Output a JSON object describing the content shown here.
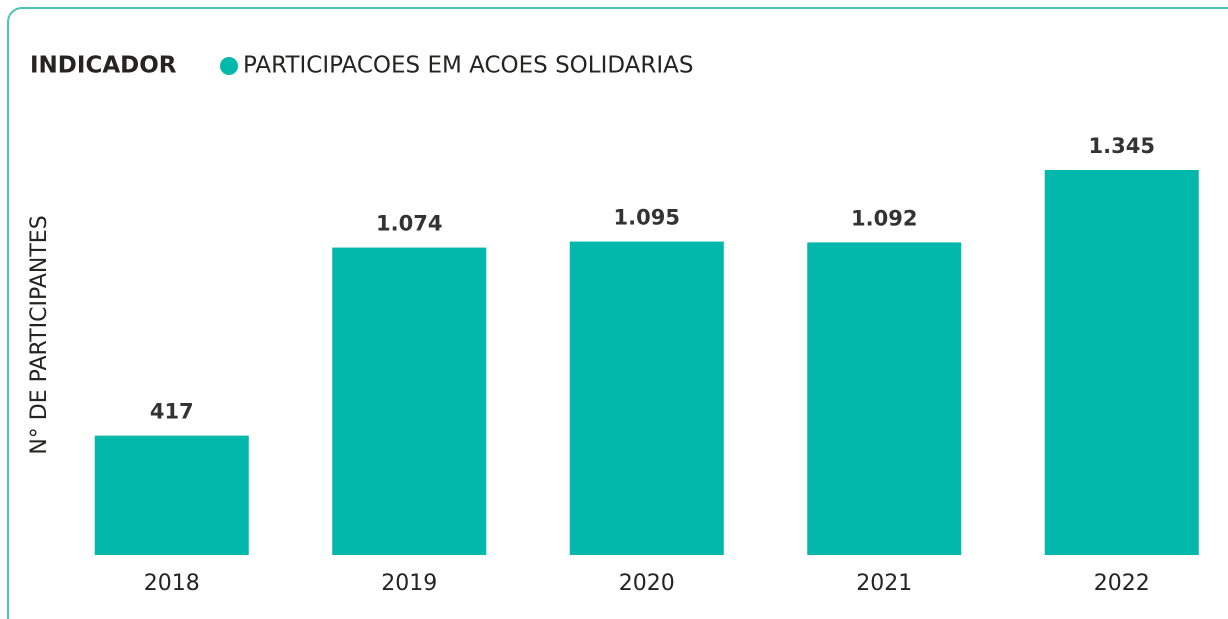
{
  "chart_data": {
    "type": "bar",
    "legend_title": "INDICADOR",
    "ylabel": "N° DE PARTICIPANTES",
    "categories": [
      "2018",
      "2019",
      "2020",
      "2021",
      "2022"
    ],
    "series": [
      {
        "name": "PARTICIPACOES EM ACOES SOLIDARIAS",
        "color": "#01b8aa",
        "values": [
          417,
          1074,
          1095,
          1092,
          1345
        ],
        "value_labels": [
          "417",
          "1.074",
          "1.095",
          "1.092",
          "1.345"
        ]
      }
    ]
  }
}
